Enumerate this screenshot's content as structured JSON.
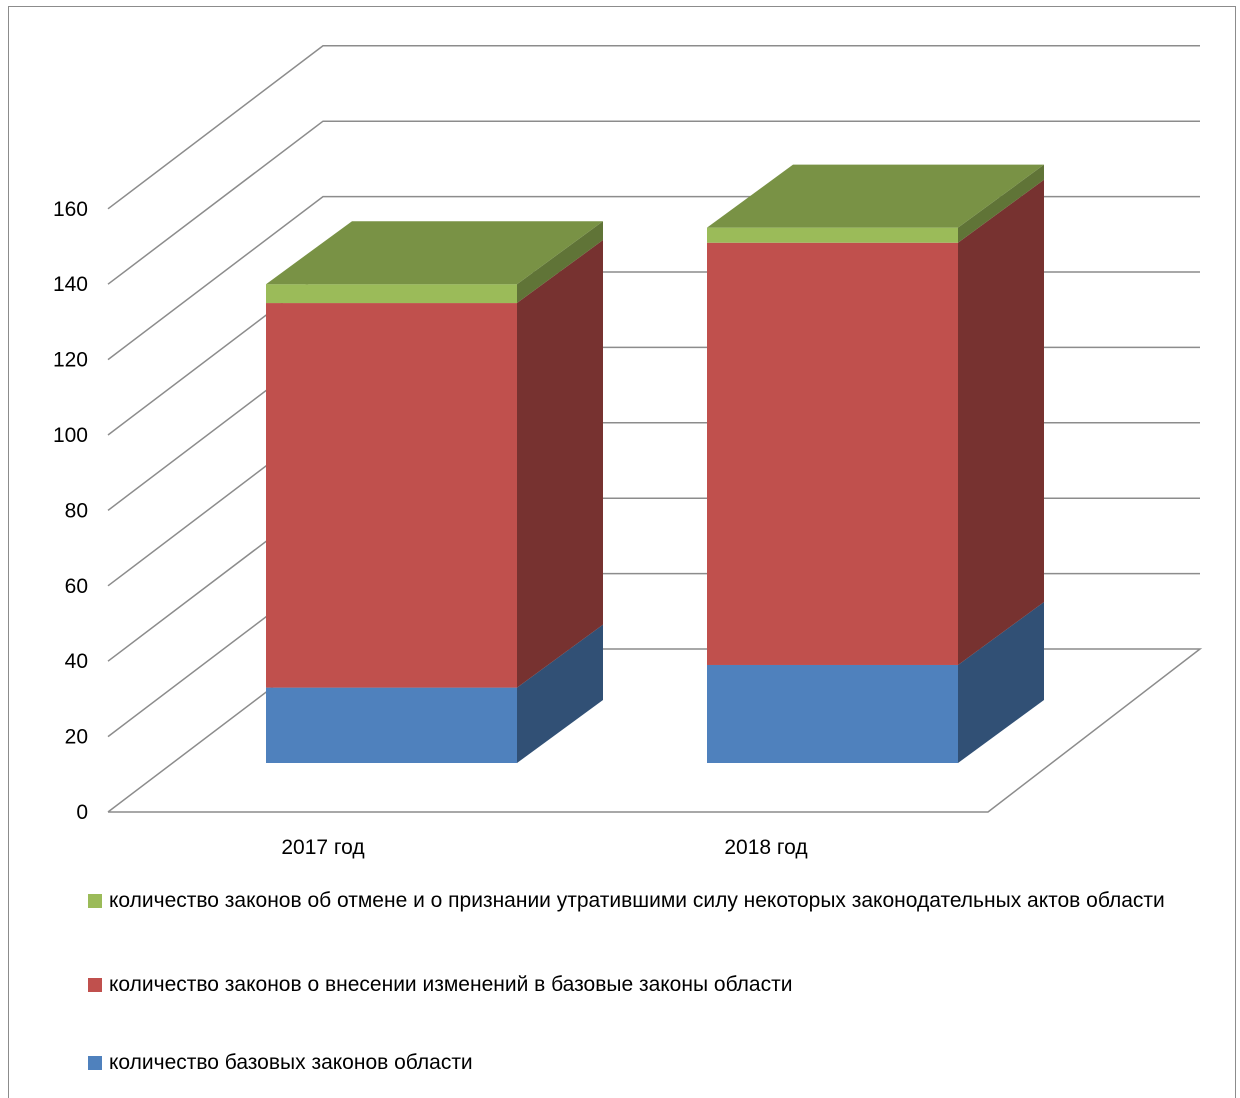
{
  "chart_data": {
    "type": "bar",
    "stacked": true,
    "three_d": true,
    "categories": [
      "2017 год",
      "2018 год"
    ],
    "series": [
      {
        "name": "количество базовых законов области",
        "values": [
          20,
          26
        ],
        "color": "#4f81bd"
      },
      {
        "name": "количество законов о внесении изменений в базовые законы области",
        "values": [
          102,
          112
        ],
        "color": "#c0504d"
      },
      {
        "name": "количество законов об отмене и о признании утратившими силу некоторых законодательных актов области",
        "values": [
          5,
          4
        ],
        "color": "#9bbb59"
      }
    ],
    "ylim": [
      0,
      160
    ],
    "yticks": [
      "0",
      "20",
      "40",
      "60",
      "80",
      "100",
      "120",
      "140",
      "160"
    ],
    "grid": true,
    "legend_position": "bottom",
    "legend_order": [
      2,
      1,
      0
    ]
  }
}
